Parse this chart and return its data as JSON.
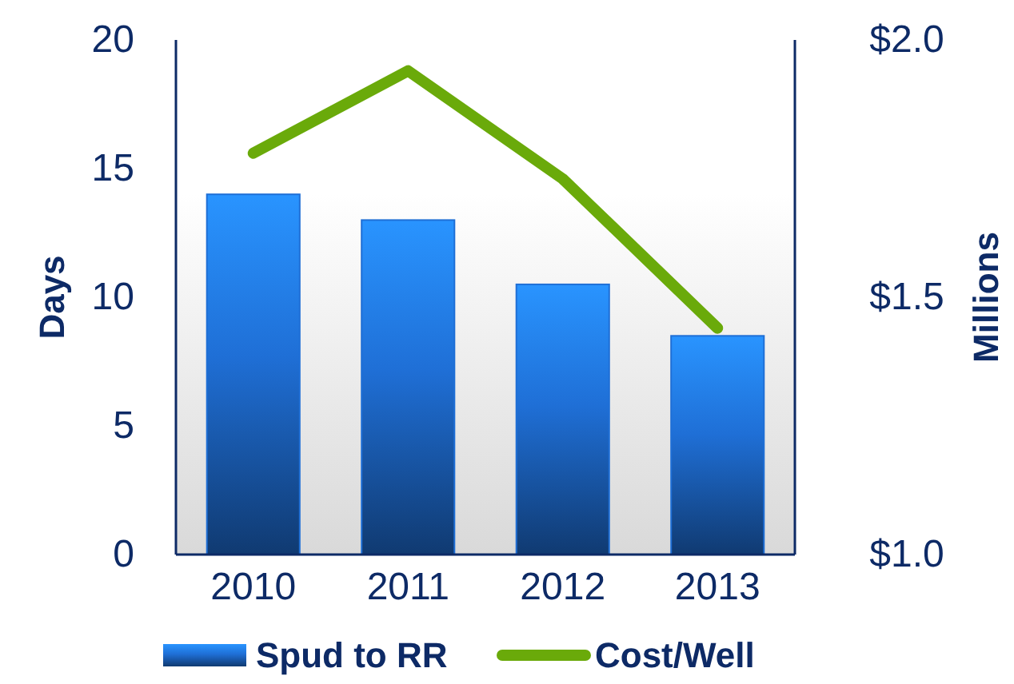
{
  "chart_data": {
    "type": "bar",
    "ylabel": "Days",
    "y2label": "Millions",
    "categories": [
      "2010",
      "2011",
      "2012",
      "2013"
    ],
    "series": [
      {
        "name": "Spud to RR",
        "color": "#1f6fd6",
        "values": [
          14,
          13,
          10.5,
          8.5
        ]
      },
      {
        "name": "Cost/Well",
        "type": "line",
        "axis": "y2",
        "color": "#6aaa0a",
        "values": [
          1.78,
          1.94,
          1.73,
          1.44
        ]
      }
    ],
    "ylim": [
      0,
      20
    ],
    "yticks": [
      0,
      5,
      10,
      15,
      20
    ],
    "y2lim": [
      1,
      2
    ],
    "y2ticks": [
      {
        "value": 1,
        "label": "$1.0"
      },
      {
        "value": 1.5,
        "label": "$1.5"
      },
      {
        "value": 2,
        "label": "$2.0"
      }
    ],
    "legend": "bottom",
    "grid": false
  }
}
